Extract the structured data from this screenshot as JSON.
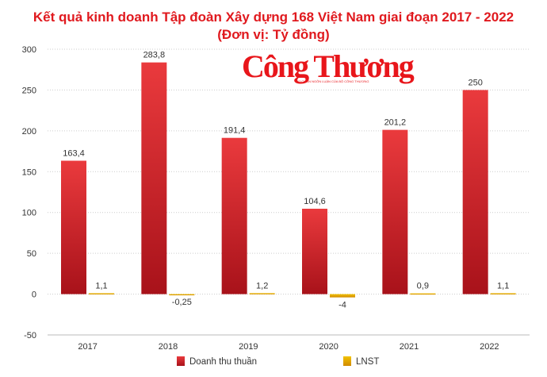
{
  "chart_data": {
    "type": "bar",
    "title": "Kết quả kinh doanh Tập đoàn Xây dựng 168 Việt Nam giai đoạn 2017 - 2022",
    "subtitle": "(Đơn vị: Tỷ đồng)",
    "categories": [
      "2017",
      "2018",
      "2019",
      "2020",
      "2021",
      "2022"
    ],
    "series": [
      {
        "name": "Doanh thu thuần",
        "color": "#d42027",
        "values": [
          163.4,
          283.8,
          191.4,
          104.6,
          201.2,
          250
        ],
        "labels": [
          "163,4",
          "283,8",
          "191,4",
          "104,6",
          "201,2",
          "250"
        ]
      },
      {
        "name": "LNST",
        "color": "#e8a800",
        "values": [
          1.1,
          -0.25,
          1.2,
          -4,
          0.9,
          1.1
        ],
        "labels": [
          "1,1",
          "-0,25",
          "1,2",
          "-4",
          "0,9",
          "1,1"
        ]
      }
    ],
    "ylim": [
      -50,
      300
    ],
    "yticks": [
      "-50",
      "0",
      "50",
      "100",
      "150",
      "200",
      "250",
      "300"
    ],
    "ytick_values": [
      -50,
      0,
      50,
      100,
      150,
      200,
      250,
      300
    ],
    "grid": true,
    "legend_placement": "bottom"
  },
  "logo": {
    "name": "Công Thương",
    "tagline": "CƠ QUAN NGÔN LUẬN CỦA BỘ CÔNG THƯƠNG"
  }
}
